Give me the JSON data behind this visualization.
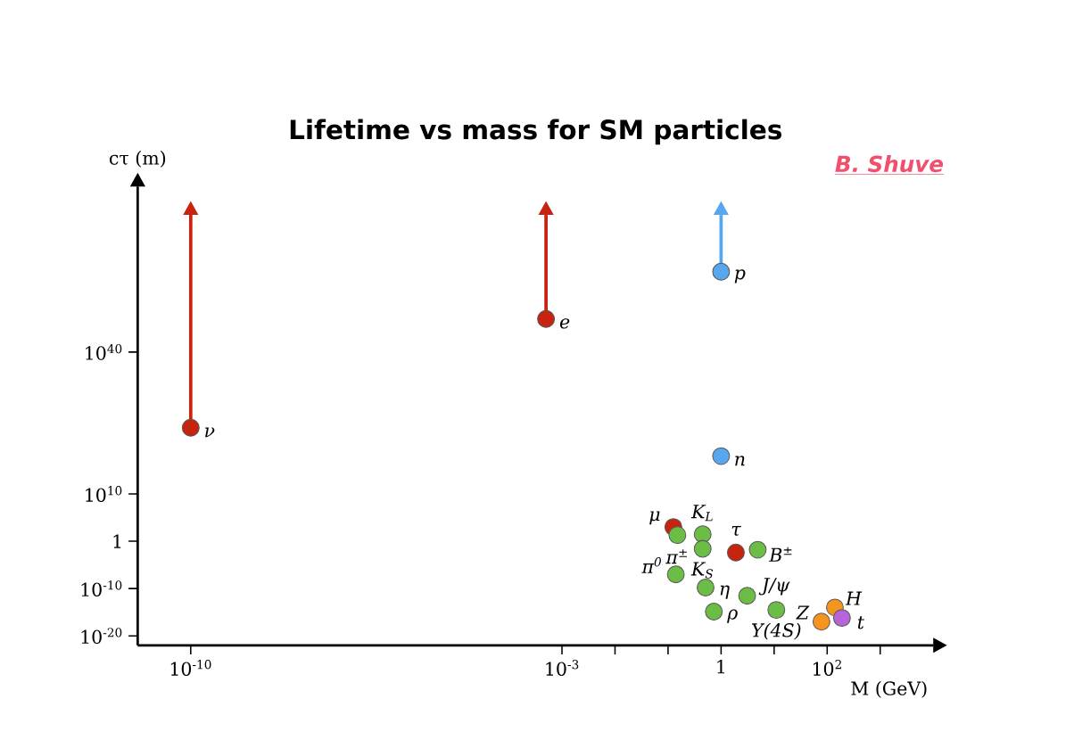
{
  "chart_data": {
    "type": "scatter",
    "title": "Lifetime vs mass for SM particles",
    "xlabel": "M (GeV)",
    "ylabel": "cτ (m)",
    "log": "xy",
    "marker": "circle",
    "xlim": [
      1e-11,
      10000
    ],
    "ylim": [
      1e-22,
      1e+75
    ],
    "xticks": [
      {
        "value": 1e-10,
        "label": "10$^{-10}$"
      },
      {
        "value": 0.001,
        "label": "10$^{-3}$"
      },
      {
        "value": 0.01,
        "label": null
      },
      {
        "value": 0.1,
        "label": null
      },
      1,
      {
        "value": 10,
        "label": null
      },
      {
        "value": 100,
        "label": "10$^{2}$"
      },
      {
        "value": 1000,
        "label": null
      }
    ],
    "yticks": [
      {
        "value": 1e-20,
        "label": "10$^{-20}$"
      },
      {
        "value": 1e-10,
        "label": "10$^{-10}$"
      },
      1,
      {
        "value": 10000000000.0,
        "label": "10$^{10}$"
      },
      {
        "value": 1e+40,
        "label": "10$^{40}$"
      }
    ],
    "series": [
      {
        "color": "#c8230f",
        "x": [
          1e-10,
          0.0005,
          0.126,
          1.9
        ],
        "values": [
          1e+24,
          1e+47,
          1000,
          0.004
        ],
        "errors": [
          [
            1e+24,
            1e+69
          ],
          [
            1e+47,
            1e+69
          ],
          null,
          null
        ]
      },
      {
        "color": "#6bbd45",
        "x": [
          0.15,
          0.45,
          0.45,
          4.9,
          0.14,
          0.51,
          3.1,
          0.73,
          11
        ],
        "values": [
          20,
          30,
          0.025,
          0.016,
          1e-07,
          1.6e-10,
          3e-12,
          1.3e-15,
          3e-15
        ]
      },
      {
        "color": "#58a7ee",
        "x": [
          1,
          1
        ],
        "values": [
          1e+18,
          1e+57
        ],
        "errors": [
          null,
          [
            1e+57,
            1e+69
          ]
        ]
      },
      {
        "color": "#f59520",
        "x": [
          140,
          78
        ],
        "values": [
          1e-14,
          1e-17
        ]
      },
      {
        "color": "#b565d9",
        "x": [
          190
        ],
        "values": [
          6e-17
        ]
      }
    ],
    "annotations": [
      {
        "text": "ν",
        "x": 1e-10,
        "y": 1e+24
      },
      {
        "text": "e",
        "x": 0.0005,
        "y": 1e+47
      },
      {
        "text": "μ",
        "x": 0.126,
        "y": 1000
      },
      {
        "text": "τ",
        "x": 1.9,
        "y": 0.004
      },
      {
        "text": "π$^{±}$",
        "x": 0.15,
        "y": 20
      },
      {
        "text": "K$_{L}$",
        "x": 0.45,
        "y": 30
      },
      {
        "text": "K$_{S}$",
        "x": 0.45,
        "y": 0.025
      },
      {
        "text": "B$^{±}$",
        "x": 4.9,
        "y": 0.016
      },
      {
        "text": "π$^{0}$",
        "x": 0.14,
        "y": 1e-07
      },
      {
        "text": "η",
        "x": 0.51,
        "y": 1.6e-10
      },
      {
        "text": "J/ψ",
        "x": 3.1,
        "y": 3e-12
      },
      {
        "text": "ρ",
        "x": 0.73,
        "y": 1.3e-15
      },
      {
        "text": "Υ(4S)",
        "x": 11,
        "y": 3e-15
      },
      {
        "text": "n",
        "x": 1,
        "y": 1e+18
      },
      {
        "text": "p",
        "x": 1,
        "y": 1e+57
      },
      {
        "text": "H",
        "x": 140,
        "y": 1e-14
      },
      {
        "text": "Z",
        "x": 78,
        "y": 1e-17
      },
      {
        "text": "t",
        "x": 190,
        "y": 6e-17
      },
      "B. Shuve"
    ]
  }
}
